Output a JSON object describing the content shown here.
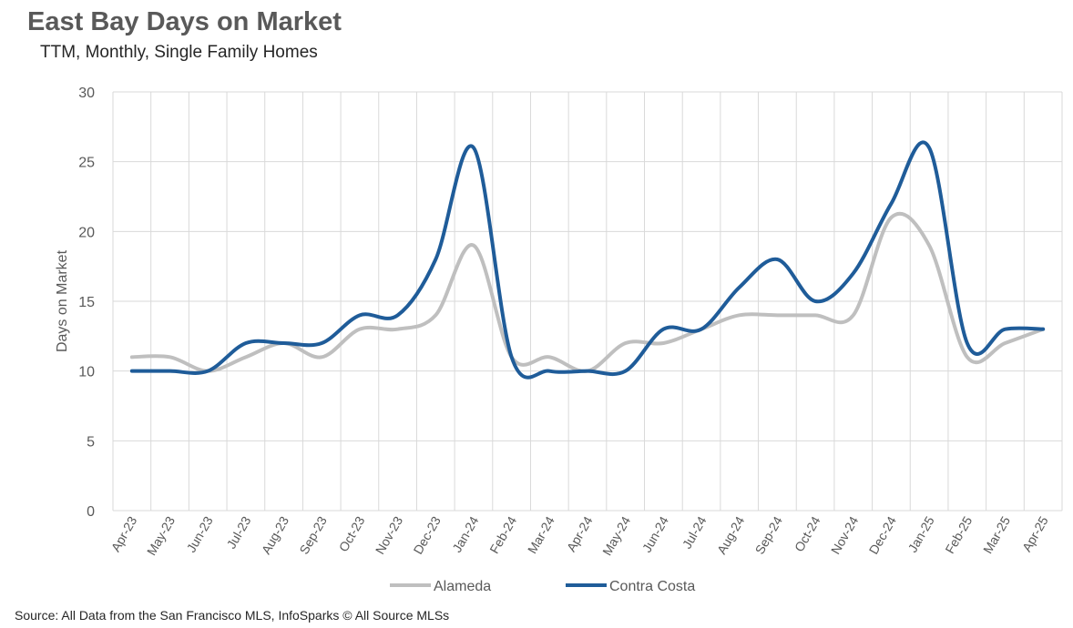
{
  "header": {
    "title": "East Bay Days on Market",
    "subtitle": "TTM, Monthly, Single Family Homes"
  },
  "footer": {
    "source": "Source: All Data from the San Francisco MLS, InfoSparks © All Source MLSs"
  },
  "chart_data": {
    "type": "line",
    "title": "East Bay Days on Market",
    "subtitle": "TTM, Monthly, Single Family Homes",
    "xlabel": "",
    "ylabel": "Days on Market",
    "ylim": [
      0,
      30
    ],
    "yticks": [
      0,
      5,
      10,
      15,
      20,
      25,
      30
    ],
    "grid": true,
    "legend": "bottom",
    "categories": [
      "Apr-23",
      "May-23",
      "Jun-23",
      "Jul-23",
      "Aug-23",
      "Sep-23",
      "Oct-23",
      "Nov-23",
      "Dec-23",
      "Jan-24",
      "Feb-24",
      "Mar-24",
      "Apr-24",
      "May-24",
      "Jun-24",
      "Jul-24",
      "Aug-24",
      "Sep-24",
      "Oct-24",
      "Nov-24",
      "Dec-24",
      "Jan-25",
      "Feb-25",
      "Mar-25",
      "Apr-25"
    ],
    "series": [
      {
        "name": "Alameda",
        "color": "#bfbfbf",
        "values": [
          11,
          11,
          10,
          11,
          12,
          11,
          13,
          13,
          14,
          19,
          11,
          11,
          10,
          12,
          12,
          13,
          14,
          14,
          14,
          14,
          21,
          19,
          11,
          12,
          13
        ]
      },
      {
        "name": "Contra Costa",
        "color": "#1f5c99",
        "values": [
          10,
          10,
          10,
          12,
          12,
          12,
          14,
          14,
          18,
          26,
          11,
          10,
          10,
          10,
          13,
          13,
          16,
          18,
          15,
          17,
          22,
          26,
          12,
          13,
          13
        ]
      }
    ]
  }
}
